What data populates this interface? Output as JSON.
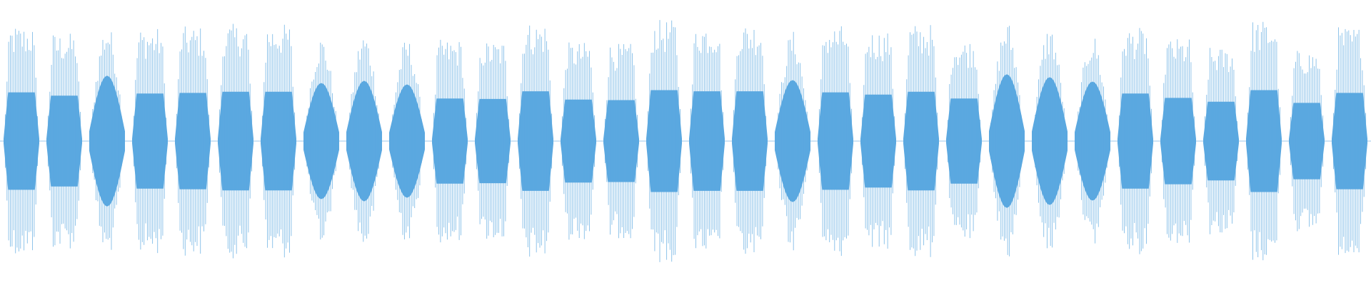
{
  "waveform": {
    "color": "#5ba8e0",
    "segment_count": 32,
    "segment_peaks": [
      0.88,
      0.82,
      0.9,
      0.86,
      0.87,
      0.89,
      0.89,
      0.8,
      0.83,
      0.78,
      0.77,
      0.76,
      0.9,
      0.75,
      0.74,
      0.92,
      0.9,
      0.9,
      0.84,
      0.88,
      0.84,
      0.89,
      0.77,
      0.92,
      0.88,
      0.82,
      0.86,
      0.78,
      0.71,
      0.92,
      0.69,
      0.87
    ],
    "segment_shapes": [
      "flat",
      "flat",
      "swell",
      "flat",
      "flat",
      "flat",
      "flat",
      "swell",
      "swell",
      "swell",
      "flat",
      "flat",
      "flat",
      "flat",
      "flat",
      "flat",
      "flat",
      "flat",
      "swell",
      "flat",
      "flat",
      "flat",
      "flat",
      "swell",
      "swell",
      "swell",
      "flat",
      "flat",
      "flat",
      "flat",
      "flat",
      "flat"
    ]
  }
}
